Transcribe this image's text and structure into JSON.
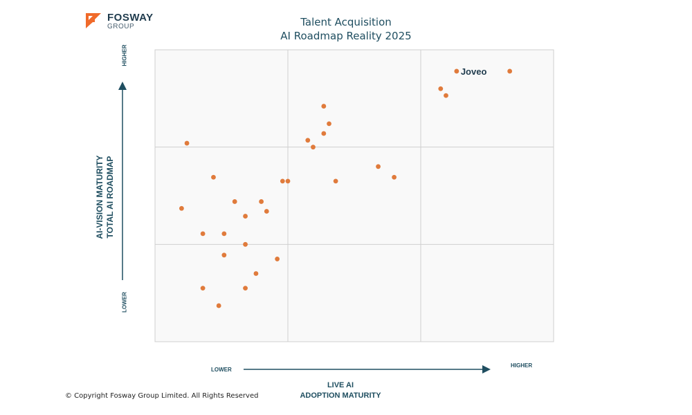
{
  "logo": {
    "name": "FOSWAY",
    "sub": "GROUP",
    "accent": "#f06a2a"
  },
  "title": {
    "line1": "Talent Acquisition",
    "line2": "AI Roadmap Reality 2025"
  },
  "axes": {
    "y_title_line1": "AI-VISION MATURITY",
    "y_title_line2": "TOTAL AI ROADMAP",
    "x_title_line1": "LIVE AI",
    "x_title_line2": "ADOPTION MATURITY",
    "y_high": "HIGHER",
    "y_low": "LOWER",
    "x_low": "LOWER",
    "x_high": "HIGHER"
  },
  "copyright": "© Copyright Fosway Group Limited. All Rights Reserved",
  "chart_data": {
    "type": "scatter",
    "xlim": [
      0,
      3
    ],
    "ylim": [
      0,
      3
    ],
    "grid": "3x3",
    "dot_color": "#e07b3c",
    "annotation": {
      "label": "Joveo",
      "point": [
        2.27,
        2.78
      ]
    },
    "points": [
      [
        2.27,
        2.78
      ],
      [
        2.67,
        2.78
      ],
      [
        2.15,
        2.6
      ],
      [
        2.19,
        2.53
      ],
      [
        1.27,
        2.42
      ],
      [
        1.31,
        2.24
      ],
      [
        1.27,
        2.14
      ],
      [
        1.15,
        2.07
      ],
      [
        1.19,
        2.0
      ],
      [
        0.24,
        2.04
      ],
      [
        1.68,
        1.8
      ],
      [
        1.8,
        1.69
      ],
      [
        1.36,
        1.65
      ],
      [
        0.44,
        1.69
      ],
      [
        0.96,
        1.65
      ],
      [
        1.0,
        1.65
      ],
      [
        0.6,
        1.44
      ],
      [
        0.8,
        1.44
      ],
      [
        0.2,
        1.37
      ],
      [
        0.84,
        1.34
      ],
      [
        0.68,
        1.29
      ],
      [
        0.36,
        1.11
      ],
      [
        0.52,
        1.11
      ],
      [
        0.68,
        1.0
      ],
      [
        0.52,
        0.89
      ],
      [
        0.92,
        0.85
      ],
      [
        0.76,
        0.7
      ],
      [
        0.36,
        0.55
      ],
      [
        0.68,
        0.55
      ],
      [
        0.48,
        0.37
      ]
    ]
  }
}
